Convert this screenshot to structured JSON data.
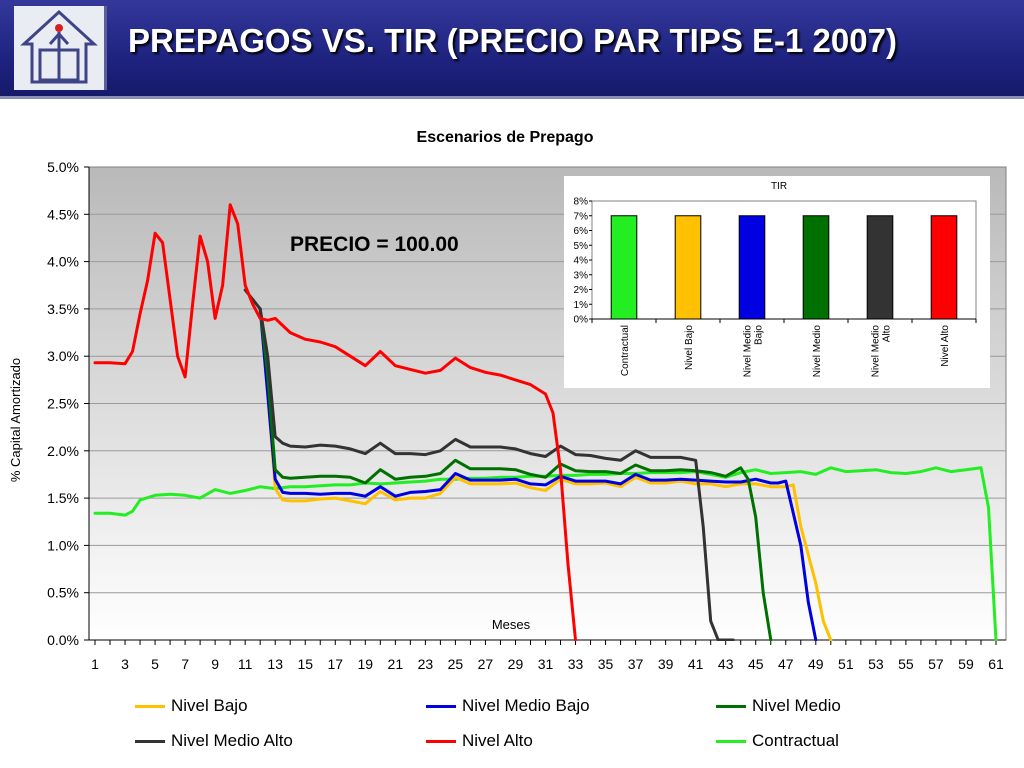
{
  "header": {
    "title": "PREPAGOS VS. TIR (PRECIO PAR TIPS E-1 2007)",
    "logo_icon": "house-logo-icon",
    "background": "#1f2380"
  },
  "chart_data": [
    {
      "type": "line",
      "title": "Escenarios de Prepago",
      "annotation": "PRECIO = 100.00",
      "xlabel": "Meses",
      "ylabel": "% Capital Amortizado",
      "xlim": [
        1,
        61
      ],
      "ylim": [
        0,
        5.0
      ],
      "y_ticks": [
        "0.0%",
        "0.5%",
        "1.0%",
        "1.5%",
        "2.0%",
        "2.5%",
        "3.0%",
        "3.5%",
        "4.0%",
        "4.5%",
        "5.0%"
      ],
      "x_ticks": [
        "1",
        "3",
        "5",
        "7",
        "9",
        "11",
        "13",
        "15",
        "17",
        "19",
        "21",
        "23",
        "25",
        "27",
        "29",
        "31",
        "33",
        "35",
        "37",
        "39",
        "41",
        "43",
        "45",
        "47",
        "49",
        "51",
        "53",
        "55",
        "57",
        "59",
        "61"
      ],
      "grid": true,
      "legend_position": "bottom",
      "series": [
        {
          "name": "Nivel Bajo",
          "color": "#ffc000",
          "x": [
            12,
            12.5,
            13,
            13.5,
            14,
            15,
            16,
            17,
            18,
            19,
            20,
            21,
            22,
            23,
            24,
            25,
            26,
            27,
            28,
            29,
            30,
            31,
            32,
            33,
            34,
            35,
            36,
            37,
            38,
            39,
            40,
            41,
            42,
            43,
            44,
            45,
            46,
            47,
            47.5,
            48,
            49,
            49.5,
            50
          ],
          "y": [
            3.5,
            2.6,
            1.6,
            1.48,
            1.47,
            1.47,
            1.49,
            1.5,
            1.47,
            1.44,
            1.57,
            1.48,
            1.5,
            1.5,
            1.55,
            1.72,
            1.65,
            1.65,
            1.65,
            1.66,
            1.61,
            1.58,
            1.7,
            1.65,
            1.65,
            1.66,
            1.62,
            1.72,
            1.66,
            1.66,
            1.68,
            1.65,
            1.65,
            1.62,
            1.65,
            1.65,
            1.62,
            1.62,
            1.64,
            1.2,
            0.6,
            0.2,
            0.0
          ]
        },
        {
          "name": "Nivel Medio Bajo",
          "color": "#0000e0",
          "x": [
            12,
            12.5,
            13,
            13.5,
            14,
            15,
            16,
            17,
            18,
            19,
            20,
            21,
            22,
            23,
            24,
            25,
            26,
            27,
            28,
            29,
            30,
            31,
            32,
            33,
            34,
            35,
            36,
            37,
            38,
            39,
            40,
            41,
            42,
            43,
            44,
            45,
            46,
            46.5,
            47,
            48,
            48.5,
            49
          ],
          "y": [
            3.5,
            2.6,
            1.7,
            1.56,
            1.55,
            1.55,
            1.54,
            1.55,
            1.55,
            1.52,
            1.62,
            1.52,
            1.56,
            1.57,
            1.59,
            1.76,
            1.69,
            1.69,
            1.69,
            1.7,
            1.65,
            1.64,
            1.73,
            1.68,
            1.68,
            1.68,
            1.65,
            1.75,
            1.69,
            1.69,
            1.7,
            1.69,
            1.68,
            1.67,
            1.67,
            1.7,
            1.66,
            1.66,
            1.68,
            1.0,
            0.4,
            0.0
          ]
        },
        {
          "name": "Nivel Medio",
          "color": "#007000",
          "x": [
            12,
            12.5,
            13,
            13.5,
            14,
            15,
            16,
            17,
            18,
            19,
            20,
            21,
            22,
            23,
            24,
            25,
            26,
            27,
            28,
            29,
            30,
            31,
            32,
            33,
            34,
            35,
            36,
            37,
            38,
            39,
            40,
            41,
            42,
            43,
            44,
            44.5,
            45,
            45.5,
            46
          ],
          "y": [
            3.5,
            2.8,
            1.8,
            1.72,
            1.71,
            1.72,
            1.73,
            1.73,
            1.72,
            1.66,
            1.8,
            1.7,
            1.72,
            1.73,
            1.76,
            1.9,
            1.81,
            1.81,
            1.81,
            1.8,
            1.75,
            1.72,
            1.86,
            1.79,
            1.78,
            1.78,
            1.76,
            1.85,
            1.79,
            1.79,
            1.8,
            1.79,
            1.77,
            1.73,
            1.82,
            1.7,
            1.3,
            0.5,
            0.0
          ]
        },
        {
          "name": "Nivel Medio Alto",
          "color": "#333333",
          "x": [
            11,
            12,
            12.5,
            13,
            13.5,
            14,
            15,
            16,
            17,
            18,
            19,
            20,
            21,
            22,
            23,
            24,
            25,
            26,
            27,
            28,
            29,
            30,
            31,
            32,
            33,
            34,
            35,
            36,
            37,
            38,
            39,
            40,
            41,
            41.5,
            42,
            42.5,
            43,
            43.5
          ],
          "y": [
            3.7,
            3.5,
            3.0,
            2.15,
            2.08,
            2.05,
            2.04,
            2.06,
            2.05,
            2.02,
            1.97,
            2.08,
            1.97,
            1.97,
            1.96,
            2.0,
            2.12,
            2.04,
            2.04,
            2.04,
            2.02,
            1.97,
            1.94,
            2.05,
            1.96,
            1.95,
            1.92,
            1.9,
            2.0,
            1.93,
            1.93,
            1.93,
            1.9,
            1.2,
            0.2,
            0.0,
            0.0,
            0.0
          ]
        },
        {
          "name": "Nivel Alto",
          "color": "#ff0000",
          "x": [
            1,
            2,
            3,
            3.5,
            4,
            4.5,
            5,
            5.5,
            6,
            6.5,
            7,
            7.5,
            8,
            8.5,
            9,
            9.5,
            10,
            10.5,
            11,
            11.5,
            12,
            12.5,
            13,
            14,
            15,
            16,
            17,
            18,
            19,
            20,
            21,
            22,
            23,
            24,
            25,
            26,
            27,
            28,
            29,
            30,
            31,
            31.5,
            32,
            32.5,
            33
          ],
          "y": [
            2.93,
            2.93,
            2.92,
            3.05,
            3.45,
            3.8,
            4.3,
            4.2,
            3.6,
            3.0,
            2.78,
            3.55,
            4.27,
            4.0,
            3.4,
            3.75,
            4.6,
            4.4,
            3.75,
            3.55,
            3.4,
            3.38,
            3.4,
            3.25,
            3.18,
            3.15,
            3.1,
            3.0,
            2.9,
            3.05,
            2.9,
            2.86,
            2.82,
            2.85,
            2.98,
            2.88,
            2.83,
            2.8,
            2.75,
            2.7,
            2.6,
            2.4,
            1.8,
            0.8,
            0.0
          ]
        },
        {
          "name": "Contractual",
          "color": "#22ee22",
          "x": [
            1,
            2,
            3,
            3.5,
            4,
            5,
            6,
            7,
            8,
            9,
            10,
            11,
            12,
            13,
            14,
            15,
            16,
            17,
            18,
            19,
            20,
            21,
            22,
            23,
            24,
            25,
            26,
            27,
            28,
            29,
            30,
            31,
            32,
            33,
            34,
            35,
            36,
            37,
            38,
            39,
            40,
            41,
            42,
            43,
            44,
            45,
            46,
            47,
            48,
            49,
            50,
            51,
            52,
            53,
            54,
            55,
            56,
            57,
            58,
            59,
            60,
            60.5,
            61
          ],
          "y": [
            1.34,
            1.34,
            1.32,
            1.36,
            1.48,
            1.53,
            1.54,
            1.53,
            1.5,
            1.59,
            1.55,
            1.58,
            1.62,
            1.6,
            1.62,
            1.62,
            1.63,
            1.64,
            1.64,
            1.66,
            1.65,
            1.66,
            1.67,
            1.68,
            1.7,
            1.7,
            1.71,
            1.71,
            1.72,
            1.72,
            1.73,
            1.73,
            1.74,
            1.74,
            1.75,
            1.75,
            1.76,
            1.76,
            1.77,
            1.77,
            1.77,
            1.78,
            1.75,
            1.72,
            1.77,
            1.8,
            1.76,
            1.77,
            1.78,
            1.75,
            1.82,
            1.78,
            1.79,
            1.8,
            1.77,
            1.76,
            1.78,
            1.82,
            1.78,
            1.8,
            1.82,
            1.4,
            0.0
          ]
        }
      ]
    },
    {
      "type": "bar",
      "title": "TIR",
      "categories": [
        "Contractual",
        "Nivel Bajo",
        "Nivel Medio Bajo",
        "Nivel Medio",
        "Nivel Medio Alto",
        "Nivel Alto"
      ],
      "category_lines": [
        [
          "Contractual"
        ],
        [
          "Nivel Bajo"
        ],
        [
          "Nivel Medio",
          "Bajo"
        ],
        [
          "Nivel Medio"
        ],
        [
          "Nivel Medio",
          "Alto"
        ],
        [
          "Nivel Alto"
        ]
      ],
      "values": [
        7.0,
        7.0,
        7.0,
        7.0,
        7.0,
        7.0
      ],
      "colors": [
        "#22ee22",
        "#ffc000",
        "#0000e0",
        "#007000",
        "#333333",
        "#ff0000"
      ],
      "ylim": [
        0,
        8
      ],
      "y_ticks": [
        "0%",
        "1%",
        "2%",
        "3%",
        "4%",
        "5%",
        "6%",
        "7%",
        "8%"
      ]
    }
  ]
}
